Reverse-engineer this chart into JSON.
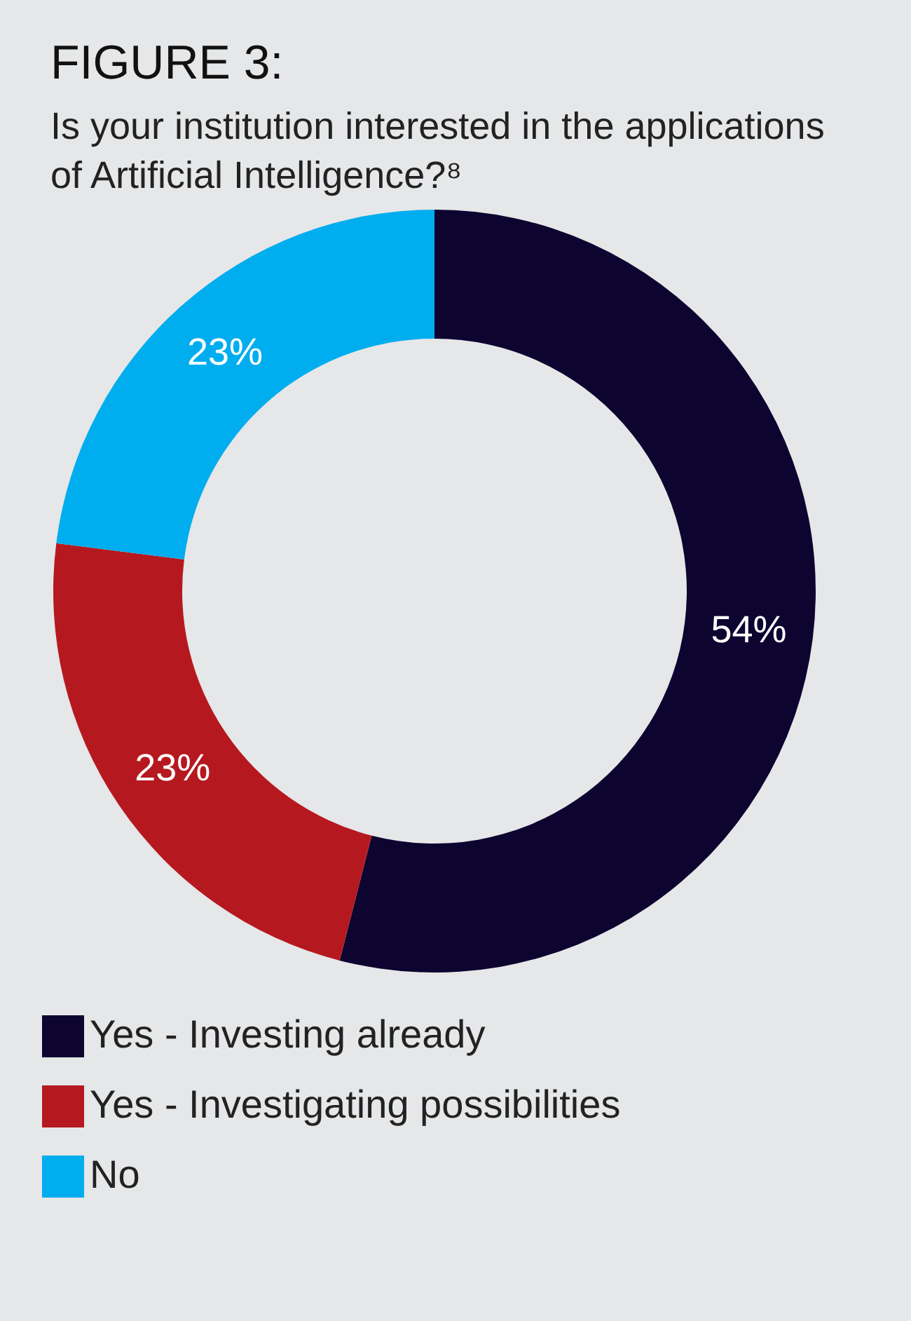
{
  "chart_data": {
    "type": "donut",
    "title": "FIGURE 3:",
    "subtitle": "Is your institution interested in the applications of Artificial Intelligence?⁸",
    "categories": [
      "Yes - Investing already",
      "Yes - Investigating possibilities",
      "No"
    ],
    "values": [
      54,
      23,
      23
    ],
    "colors": [
      "#0d0430",
      "#b5191f",
      "#00adee"
    ],
    "value_labels": [
      "54%",
      "23%",
      "23%"
    ],
    "legend": "bottom"
  }
}
